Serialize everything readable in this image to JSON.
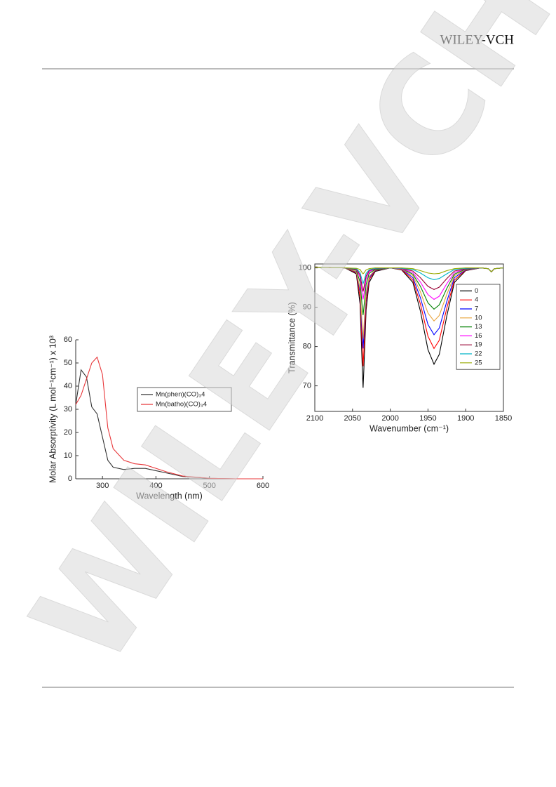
{
  "header": {
    "logo": "WILEY-VCH"
  },
  "watermark": "WILEY-VCH",
  "chart_data": [
    {
      "type": "line",
      "xlabel": "Wavelength (nm)",
      "ylabel": "Molar Absorptivity (L mol⁻¹cm⁻¹) x 10³",
      "x": [
        250,
        260,
        270,
        280,
        290,
        300,
        310,
        320,
        340,
        360,
        380,
        400,
        420,
        450,
        500,
        550,
        600
      ],
      "xlim": [
        250,
        600
      ],
      "xticks": [
        300,
        400,
        500,
        600
      ],
      "ylim": [
        0,
        60
      ],
      "yticks": [
        0,
        10,
        20,
        30,
        40,
        50,
        60
      ],
      "series": [
        {
          "name": "Mn(phen)(CO)₃4",
          "color": "#333333",
          "values": [
            32,
            47,
            44,
            31,
            28,
            18,
            8,
            5,
            4,
            4.5,
            4.5,
            3.5,
            2.5,
            1,
            0.2,
            0,
            0
          ]
        },
        {
          "name": "Mn(batho)(CO)₃4",
          "color": "#e8373a",
          "values": [
            32,
            36,
            43,
            50,
            52.5,
            45,
            22,
            13,
            8,
            6.5,
            6,
            4.5,
            3,
            1.2,
            0.2,
            0,
            0
          ]
        }
      ]
    },
    {
      "type": "line",
      "xlabel": "Wavenumber (cm⁻¹)",
      "ylabel": "Transmittance (%)",
      "x": [
        2100,
        2060,
        2045,
        2040,
        2037,
        2036,
        2035,
        2032,
        2028,
        2020,
        2000,
        1985,
        1970,
        1960,
        1950,
        1942,
        1935,
        1925,
        1915,
        1900,
        1880,
        1870,
        1866,
        1862,
        1850
      ],
      "xlim": [
        2100,
        1850
      ],
      "xticks": [
        2100,
        2050,
        2000,
        1950,
        1900,
        1850
      ],
      "ylim": [
        63.5,
        101
      ],
      "yticks": [
        70,
        80,
        90,
        100
      ],
      "series": [
        {
          "name": "0",
          "color": "#000000",
          "values": [
            100.2,
            100,
            98.5,
            90.8,
            74.1,
            69.5,
            74.1,
            89.3,
            96.3,
            99.1,
            100,
            99.5,
            96.3,
            89,
            79.2,
            75.5,
            78,
            87.8,
            96.3,
            99.3,
            100,
            99.8,
            99,
            99.8,
            100
          ]
        },
        {
          "name": "4",
          "color": "#ff0000",
          "values": [
            100.2,
            100,
            98.8,
            92.5,
            78.8,
            75,
            78.8,
            91.3,
            97,
            99.3,
            100,
            99.6,
            96.9,
            90.8,
            82.6,
            79.5,
            81.6,
            89.8,
            96.9,
            99.4,
            100,
            99.8,
            99,
            99.8,
            100
          ]
        },
        {
          "name": "7",
          "color": "#0000ff",
          "values": [
            100.2,
            100,
            99,
            93.9,
            82.6,
            79.5,
            82.6,
            92.8,
            97.5,
            99.4,
            100,
            99.7,
            97.5,
            92.4,
            85.6,
            83,
            84.7,
            91.5,
            97.5,
            99.5,
            100,
            99.8,
            99,
            99.8,
            100
          ]
        },
        {
          "name": "10",
          "color": "#e8a33c",
          "values": [
            100.2,
            100,
            99.1,
            94.6,
            84.7,
            82,
            84.7,
            93.7,
            97.8,
            99.5,
            100,
            99.7,
            98,
            93.9,
            88.5,
            86.5,
            87.9,
            93.3,
            98,
            99.6,
            100,
            99.8,
            99,
            99.8,
            100
          ]
        },
        {
          "name": "13",
          "color": "#008000",
          "values": [
            100.2,
            100,
            99.4,
            96.4,
            89.8,
            88,
            89.8,
            95.8,
            98.6,
            99.6,
            100,
            99.8,
            98.4,
            95.3,
            91.1,
            89.5,
            90.6,
            94.8,
            98.4,
            99.7,
            100,
            99.8,
            99,
            99.8,
            100
          ]
        },
        {
          "name": "16",
          "color": "#ff00ff",
          "values": [
            100.2,
            100,
            99.6,
            97.6,
            93.2,
            92,
            93.2,
            97.2,
            99,
            99.8,
            100,
            99.8,
            98.8,
            96.4,
            93.2,
            92,
            92.8,
            96,
            98.8,
            99.8,
            100,
            99.8,
            99,
            99.8,
            100
          ]
        },
        {
          "name": "19",
          "color": "#990033",
          "values": [
            100.2,
            100,
            99.7,
            98.2,
            94.9,
            94,
            94.9,
            97.9,
            99.3,
            99.8,
            100,
            99.9,
            99.2,
            97.5,
            95.3,
            94.5,
            95.1,
            97.3,
            99.2,
            99.8,
            100,
            99.8,
            99,
            99.8,
            100
          ]
        },
        {
          "name": "22",
          "color": "#00b4c8",
          "values": [
            100.2,
            100,
            99.8,
            98.8,
            96.6,
            96,
            96.6,
            98.6,
            99.5,
            99.9,
            100,
            99.9,
            99.6,
            98.7,
            97.5,
            97,
            97.3,
            98.5,
            99.6,
            99.9,
            100,
            99.8,
            99,
            99.8,
            100
          ]
        },
        {
          "name": "25",
          "color": "#99aa00",
          "values": [
            100.2,
            100,
            99.9,
            99.6,
            98.7,
            98.5,
            98.7,
            99.5,
            99.8,
            100,
            100,
            100,
            99.8,
            99.3,
            98.7,
            98.5,
            98.6,
            99.3,
            99.8,
            100,
            100,
            99.8,
            99,
            99.8,
            100
          ]
        }
      ]
    }
  ]
}
